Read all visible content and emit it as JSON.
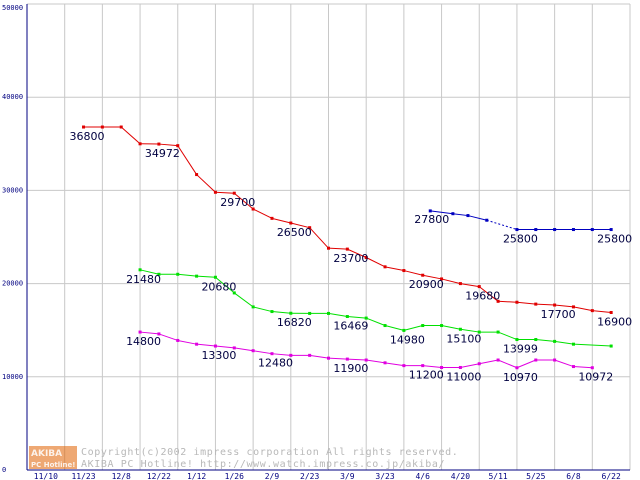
{
  "chart_data": {
    "type": "line",
    "title": "",
    "xlabel": "",
    "ylabel": "",
    "ylim": [
      0,
      50000
    ],
    "yticks": [
      0,
      10000,
      20000,
      30000,
      40000,
      50000
    ],
    "grid": true,
    "x_categories": [
      "11/10",
      "11/23",
      "12/8",
      "12/22",
      "1/12",
      "1/26",
      "2/9",
      "2/23",
      "3/9",
      "3/23",
      "4/6",
      "4/20",
      "5/11",
      "5/25",
      "6/8",
      "6/22"
    ],
    "series": [
      {
        "name": "red",
        "color": "#e00000",
        "points": [
          [
            1.0,
            36800
          ],
          [
            1.5,
            36800
          ],
          [
            2.0,
            36800
          ],
          [
            2.5,
            35000
          ],
          [
            3.0,
            34972
          ],
          [
            3.5,
            34800
          ],
          [
            4.0,
            31700
          ],
          [
            4.5,
            29800
          ],
          [
            5.0,
            29700
          ],
          [
            5.5,
            28000
          ],
          [
            6.0,
            27000
          ],
          [
            6.5,
            26500
          ],
          [
            7.0,
            26000
          ],
          [
            7.5,
            23800
          ],
          [
            8.0,
            23700
          ],
          [
            8.5,
            22800
          ],
          [
            9.0,
            21800
          ],
          [
            9.5,
            21400
          ],
          [
            10.0,
            20900
          ],
          [
            10.5,
            20500
          ],
          [
            11.0,
            20000
          ],
          [
            11.5,
            19680
          ],
          [
            12.0,
            18100
          ],
          [
            12.5,
            18000
          ],
          [
            13.0,
            17800
          ],
          [
            13.5,
            17700
          ],
          [
            14.0,
            17500
          ],
          [
            14.5,
            17100
          ],
          [
            15.0,
            16900
          ]
        ]
      },
      {
        "name": "green",
        "color": "#00e000",
        "points": [
          [
            2.5,
            21480
          ],
          [
            3.0,
            21000
          ],
          [
            3.5,
            21000
          ],
          [
            4.0,
            20800
          ],
          [
            4.5,
            20680
          ],
          [
            5.0,
            19000
          ],
          [
            5.5,
            17500
          ],
          [
            6.0,
            17000
          ],
          [
            6.5,
            16820
          ],
          [
            7.0,
            16800
          ],
          [
            7.5,
            16800
          ],
          [
            8.0,
            16469
          ],
          [
            8.5,
            16300
          ],
          [
            9.0,
            15500
          ],
          [
            9.5,
            14980
          ],
          [
            10.0,
            15500
          ],
          [
            10.5,
            15500
          ],
          [
            11.0,
            15100
          ],
          [
            11.5,
            14800
          ],
          [
            12.0,
            14800
          ],
          [
            12.5,
            13999
          ],
          [
            13.0,
            14000
          ],
          [
            13.5,
            13800
          ],
          [
            14.0,
            13500
          ],
          [
            15.0,
            13300
          ]
        ]
      },
      {
        "name": "magenta",
        "color": "#e000e0",
        "points": [
          [
            2.5,
            14800
          ],
          [
            3.0,
            14600
          ],
          [
            3.5,
            13900
          ],
          [
            4.0,
            13500
          ],
          [
            4.5,
            13300
          ],
          [
            5.0,
            13100
          ],
          [
            5.5,
            12800
          ],
          [
            6.0,
            12480
          ],
          [
            6.5,
            12300
          ],
          [
            7.0,
            12300
          ],
          [
            7.5,
            12000
          ],
          [
            8.0,
            11900
          ],
          [
            8.5,
            11800
          ],
          [
            9.0,
            11500
          ],
          [
            9.5,
            11200
          ],
          [
            10.0,
            11200
          ],
          [
            10.5,
            11000
          ],
          [
            11.0,
            11000
          ],
          [
            11.5,
            11400
          ],
          [
            12.0,
            11800
          ],
          [
            12.5,
            10970
          ],
          [
            13.0,
            11800
          ],
          [
            13.5,
            11800
          ],
          [
            14.0,
            11100
          ],
          [
            14.5,
            10972
          ]
        ]
      },
      {
        "name": "blue",
        "color": "#0000c0",
        "points": [
          [
            10.2,
            27800
          ],
          [
            10.8,
            27500
          ],
          [
            11.2,
            27300
          ],
          [
            11.7,
            26800
          ],
          [
            12.5,
            25800
          ],
          [
            13.0,
            25800
          ],
          [
            13.5,
            25800
          ],
          [
            14.0,
            25800
          ],
          [
            14.5,
            25800
          ],
          [
            15.0,
            25800
          ]
        ],
        "dotted_segment": [
          3,
          4
        ]
      }
    ],
    "annotations": [
      {
        "text": "36800",
        "series": "red",
        "x": 1.0,
        "y": 36800
      },
      {
        "text": "34972",
        "series": "red",
        "x": 3.0,
        "y": 34972
      },
      {
        "text": "29700",
        "series": "red",
        "x": 5.0,
        "y": 29700
      },
      {
        "text": "26500",
        "series": "red",
        "x": 6.5,
        "y": 26500
      },
      {
        "text": "23700",
        "series": "red",
        "x": 8.0,
        "y": 23700
      },
      {
        "text": "20900",
        "series": "red",
        "x": 10.0,
        "y": 20900
      },
      {
        "text": "19680",
        "series": "red",
        "x": 11.5,
        "y": 19680
      },
      {
        "text": "17700",
        "series": "red",
        "x": 13.5,
        "y": 17700
      },
      {
        "text": "16900",
        "series": "red",
        "x": 15.0,
        "y": 16900
      },
      {
        "text": "21480",
        "series": "green",
        "x": 2.5,
        "y": 21480
      },
      {
        "text": "20680",
        "series": "green",
        "x": 4.5,
        "y": 20680
      },
      {
        "text": "16820",
        "series": "green",
        "x": 6.5,
        "y": 16820
      },
      {
        "text": "16469",
        "series": "green",
        "x": 8.0,
        "y": 16469
      },
      {
        "text": "14980",
        "series": "green",
        "x": 9.5,
        "y": 14980
      },
      {
        "text": "15100",
        "series": "green",
        "x": 11.0,
        "y": 15100
      },
      {
        "text": "13999",
        "series": "green",
        "x": 12.5,
        "y": 13999
      },
      {
        "text": "14800",
        "series": "magenta",
        "x": 2.5,
        "y": 14800
      },
      {
        "text": "13300",
        "series": "magenta",
        "x": 4.5,
        "y": 13300
      },
      {
        "text": "12480",
        "series": "magenta",
        "x": 6.0,
        "y": 12480
      },
      {
        "text": "11900",
        "series": "magenta",
        "x": 8.0,
        "y": 11900
      },
      {
        "text": "11200",
        "series": "magenta",
        "x": 10.0,
        "y": 11200
      },
      {
        "text": "11000",
        "series": "magenta",
        "x": 11.0,
        "y": 11000
      },
      {
        "text": "10970",
        "series": "magenta",
        "x": 12.5,
        "y": 10970
      },
      {
        "text": "10972",
        "series": "magenta",
        "x": 14.5,
        "y": 10972
      },
      {
        "text": "27800",
        "series": "blue",
        "x": 10.2,
        "y": 27800
      },
      {
        "text": "25800",
        "series": "blue",
        "x": 12.5,
        "y": 25800
      },
      {
        "text": "25800",
        "series": "blue",
        "x": 15.0,
        "y": 25800
      }
    ]
  },
  "logo": {
    "top": "AKIBA",
    "bottom": "PC Hotline!"
  },
  "footer": {
    "copyright": "Copyright(c)2002 impress corporation All rights reserved.",
    "site": "AKIBA PC Hotline! http://www.watch.impress.co.jp/akiba/"
  },
  "colors": {
    "grid": "#c8c8c8",
    "axis": "#000080",
    "logo_bg": "#e06000"
  }
}
